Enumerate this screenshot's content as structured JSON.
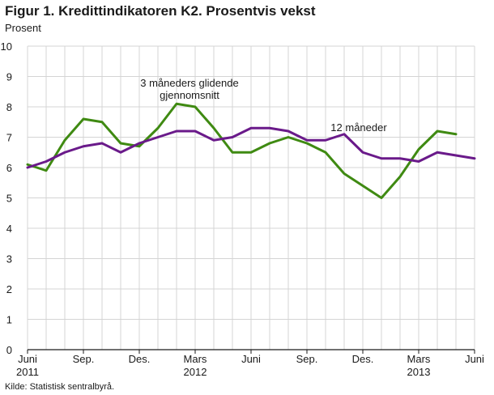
{
  "figure": {
    "title": "Figur 1. Kredittindikatoren K2. Prosentvis vekst",
    "source": "Kilde: Statistisk sentralbyrå."
  },
  "chart_data": {
    "type": "line",
    "ylabel": "Prosent",
    "xlabel": "",
    "ylim": [
      0,
      10
    ],
    "yticks": [
      0,
      1,
      2,
      3,
      4,
      5,
      6,
      7,
      8,
      9,
      10
    ],
    "grid": true,
    "x": [
      "2011-06",
      "2011-07",
      "2011-08",
      "2011-09",
      "2011-10",
      "2011-11",
      "2011-12",
      "2012-01",
      "2012-02",
      "2012-03",
      "2012-04",
      "2012-05",
      "2012-06",
      "2012-07",
      "2012-08",
      "2012-09",
      "2012-10",
      "2012-11",
      "2012-12",
      "2013-01",
      "2013-02",
      "2013-03",
      "2013-04",
      "2013-05",
      "2013-06"
    ],
    "xticks": [
      {
        "i": 0,
        "line1": "Juni",
        "line2": "2011"
      },
      {
        "i": 3,
        "line1": "Sep.",
        "line2": ""
      },
      {
        "i": 6,
        "line1": "Des.",
        "line2": ""
      },
      {
        "i": 9,
        "line1": "Mars",
        "line2": "2012"
      },
      {
        "i": 12,
        "line1": "Juni",
        "line2": ""
      },
      {
        "i": 15,
        "line1": "Sep.",
        "line2": ""
      },
      {
        "i": 18,
        "line1": "Des.",
        "line2": ""
      },
      {
        "i": 21,
        "line1": "Mars",
        "line2": "2013"
      },
      {
        "i": 24,
        "line1": "Juni",
        "line2": ""
      }
    ],
    "series": [
      {
        "name": "3 måneders glidende gjennomsnitt",
        "color": "#3f8a12",
        "values": [
          6.1,
          5.9,
          6.9,
          7.6,
          7.5,
          6.8,
          6.7,
          7.3,
          8.1,
          8.0,
          7.3,
          6.5,
          6.5,
          6.8,
          7.0,
          6.8,
          6.5,
          5.8,
          5.4,
          5.0,
          5.7,
          6.6,
          7.2,
          7.1,
          null
        ]
      },
      {
        "name": "12 måneder",
        "color": "#6a1a8a",
        "values": [
          6.0,
          6.2,
          6.5,
          6.7,
          6.8,
          6.5,
          6.8,
          7.0,
          7.2,
          7.2,
          6.9,
          7.0,
          7.3,
          7.3,
          7.2,
          6.9,
          6.9,
          7.1,
          6.5,
          6.3,
          6.3,
          6.2,
          6.5,
          6.4,
          6.3
        ]
      }
    ],
    "annotations": [
      {
        "series": 0,
        "lines": [
          "3 måneders glidende",
          "gjennomsnitt"
        ]
      },
      {
        "series": 1,
        "lines": [
          "12 måneder"
        ]
      }
    ]
  }
}
